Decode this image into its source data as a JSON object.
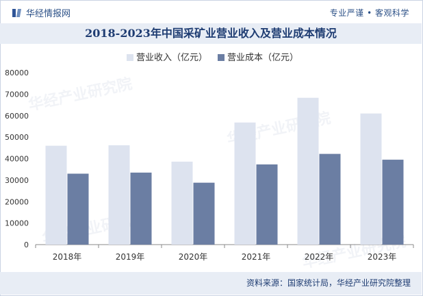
{
  "header": {
    "brand_name": "华经情报网",
    "slogan": "专业严谨 • 客观科学"
  },
  "title": "2018-2023年中国采矿业营业收入及营业成本情况",
  "source": "资料来源：国家统计局，华经产业研究院整理",
  "watermark": "华经产业研究院",
  "colors": {
    "revenue": "#dde3ef",
    "cost": "#6b7ea3",
    "title_band": "#e8edf5",
    "accent": "#1e3c72"
  },
  "chart_data": {
    "type": "bar",
    "title": "2018-2023年中国采矿业营业收入及营业成本情况",
    "categories": [
      "2018年",
      "2019年",
      "2020年",
      "2021年",
      "2022年",
      "2023年"
    ],
    "series": [
      {
        "name": "营业收入（亿元）",
        "values": [
          46000,
          46200,
          38600,
          56800,
          68300,
          61000
        ]
      },
      {
        "name": "营业成本（亿元）",
        "values": [
          33000,
          33500,
          28800,
          37300,
          42200,
          39500
        ]
      }
    ],
    "ylim": [
      0,
      80000
    ],
    "yticks": [
      "0",
      "10000",
      "20000",
      "30000",
      "40000",
      "50000",
      "60000",
      "70000",
      "80000"
    ],
    "legend_position": "top",
    "grid": false
  }
}
